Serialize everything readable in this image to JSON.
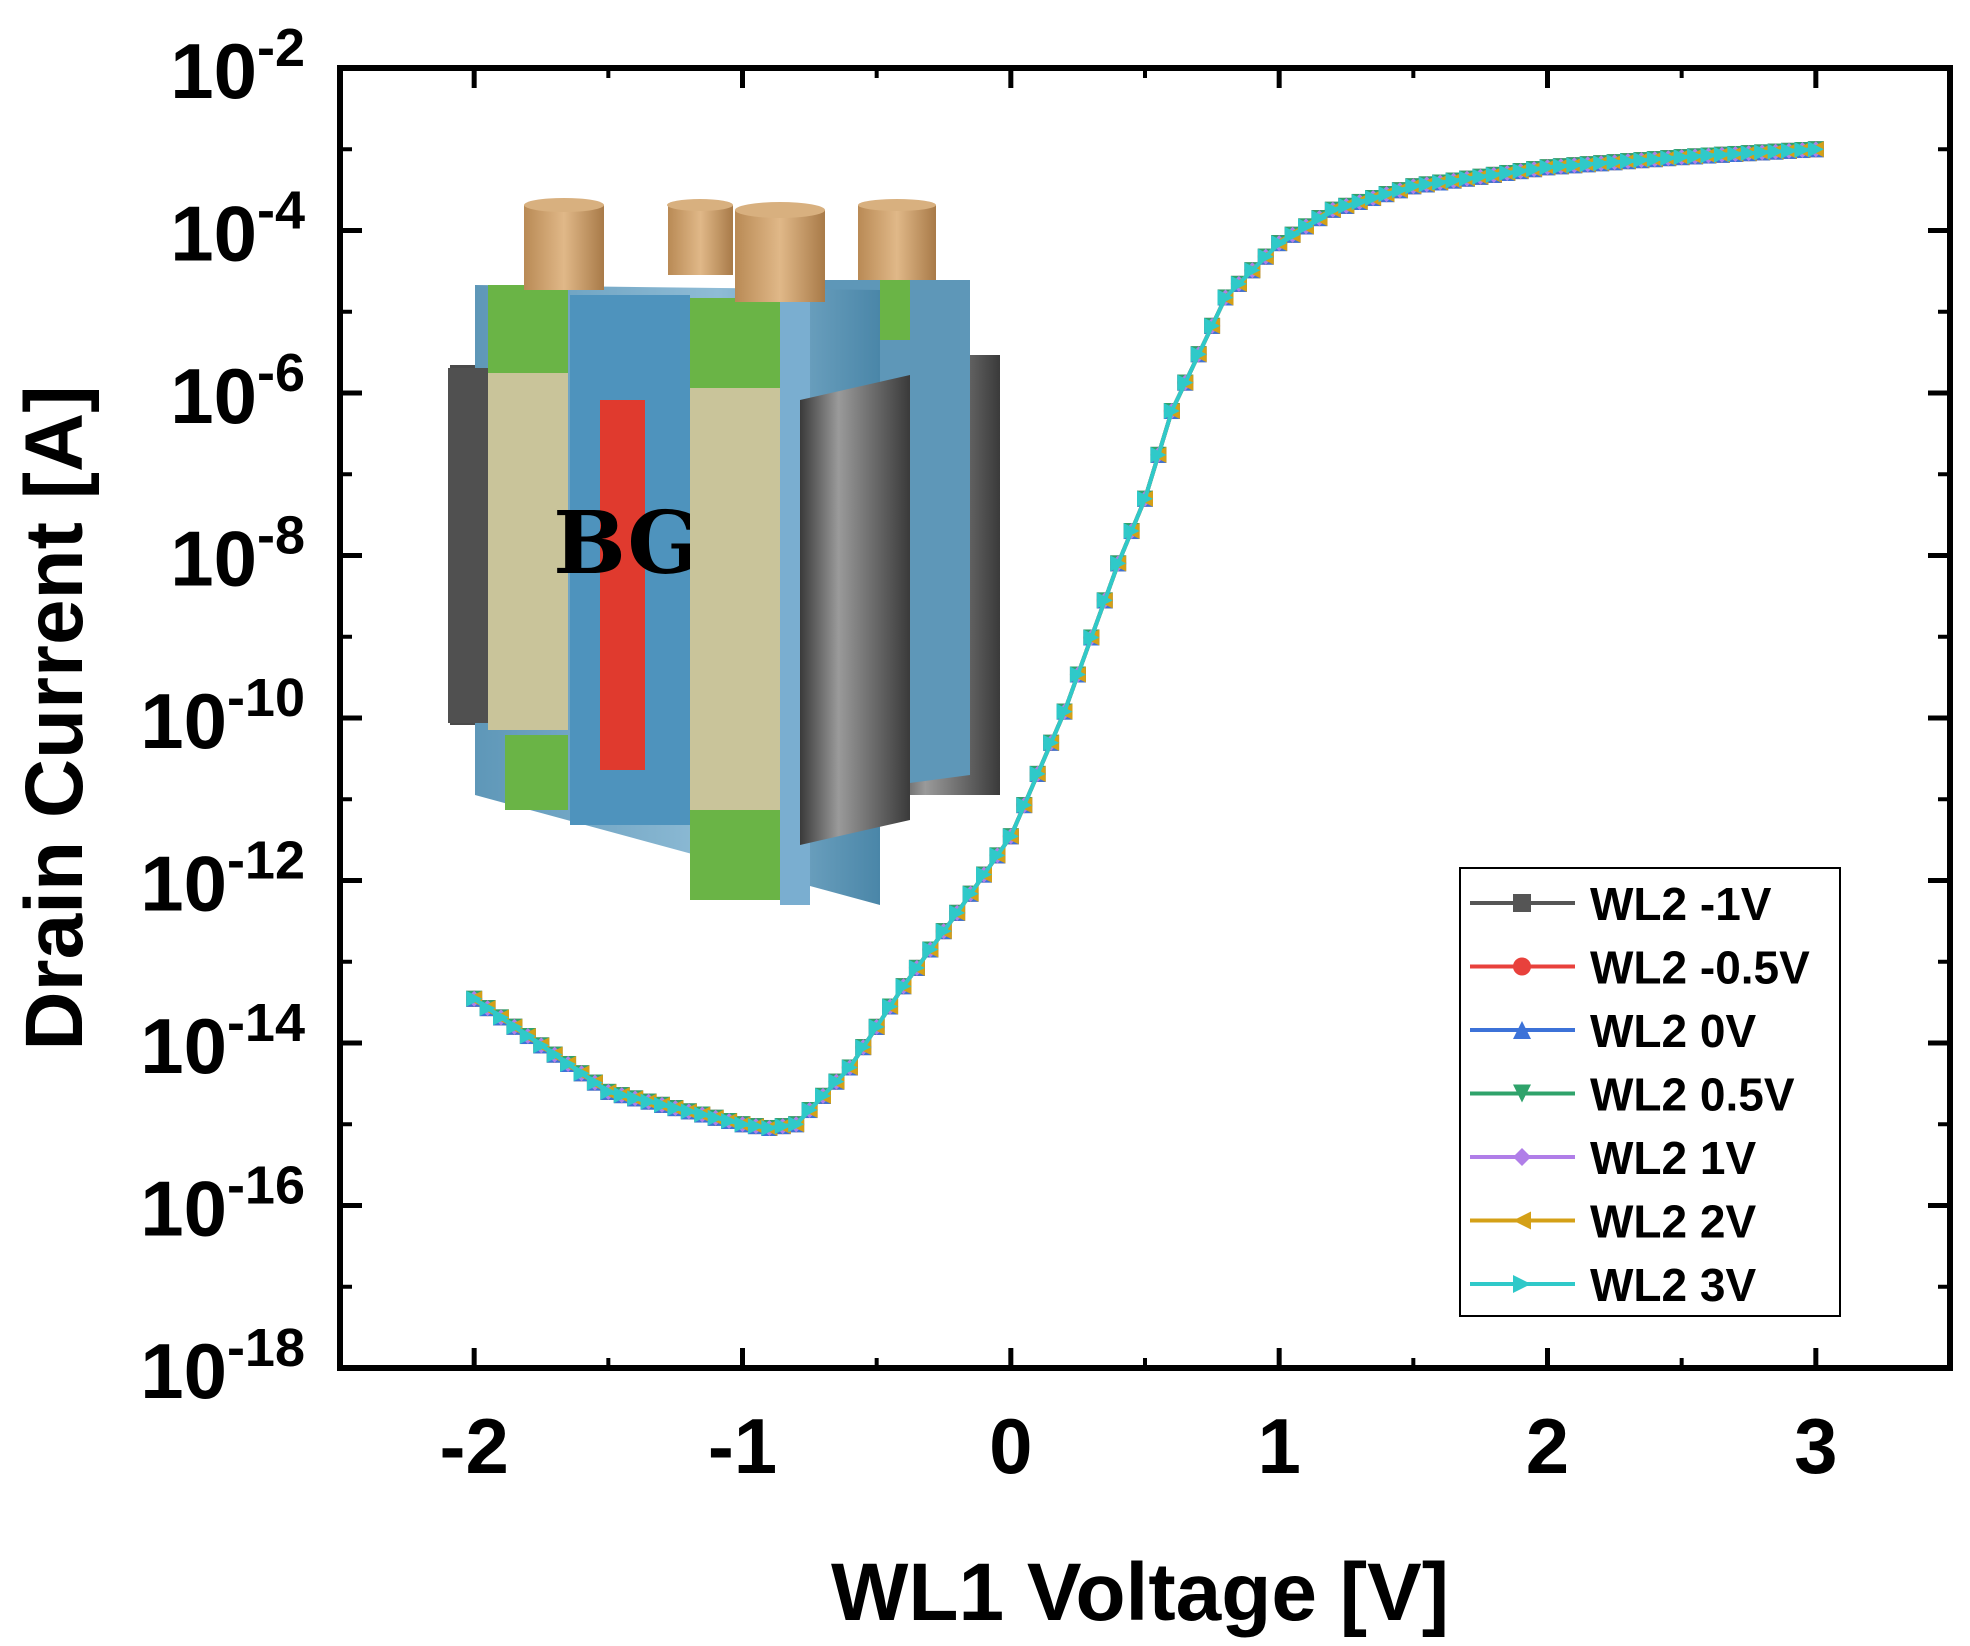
{
  "chart_data": {
    "type": "line",
    "xlabel": "WL1 Voltage [V]",
    "ylabel": "Drain Current [A]",
    "xlim": [
      -2.5,
      3.5
    ],
    "ylim_log10": [
      -18,
      -2
    ],
    "y_scale": "log",
    "x_ticks": [
      "-2",
      "-1",
      "0",
      "1",
      "2",
      "3"
    ],
    "y_ticks": [
      {
        "base": "10",
        "exp": "-2"
      },
      {
        "base": "10",
        "exp": "-4"
      },
      {
        "base": "10",
        "exp": "-6"
      },
      {
        "base": "10",
        "exp": "-8"
      },
      {
        "base": "10",
        "exp": "-10"
      },
      {
        "base": "10",
        "exp": "-12"
      },
      {
        "base": "10",
        "exp": "-14"
      },
      {
        "base": "10",
        "exp": "-16"
      },
      {
        "base": "10",
        "exp": "-18"
      }
    ],
    "legend_position": "bottom-right",
    "grid": false,
    "inset": {
      "label": "BG",
      "description_icon": "3d-device-structure"
    },
    "x": [
      -2.0,
      -1.5,
      -1.0,
      -0.9,
      -0.8,
      -0.6,
      -0.4,
      -0.2,
      0.0,
      0.2,
      0.4,
      0.5,
      0.6,
      0.8,
      1.0,
      1.2,
      1.5,
      2.0,
      2.5,
      3.0
    ],
    "y": [
      3.5e-14,
      2.5e-15,
      1e-15,
      9e-16,
      1e-15,
      5e-15,
      5e-14,
      4e-13,
      3.5e-12,
      1.2e-10,
      8e-09,
      5e-08,
      6e-07,
      1.5e-05,
      7e-05,
      0.00018,
      0.00035,
      0.0006,
      0.0008,
      0.001
    ],
    "series": [
      {
        "name": "WL2 -1V",
        "color": "#555555",
        "marker": "square"
      },
      {
        "name": "WL2 -0.5V",
        "color": "#e8413c",
        "marker": "circle"
      },
      {
        "name": "WL2 0V",
        "color": "#3c72d8",
        "marker": "triangle-up"
      },
      {
        "name": "WL2 0.5V",
        "color": "#2fa36b",
        "marker": "triangle-down"
      },
      {
        "name": "WL2 1V",
        "color": "#b07ee8",
        "marker": "diamond"
      },
      {
        "name": "WL2 2V",
        "color": "#d4a017",
        "marker": "triangle-left"
      },
      {
        "name": "WL2 3V",
        "color": "#2fc9c9",
        "marker": "triangle-right"
      }
    ]
  }
}
